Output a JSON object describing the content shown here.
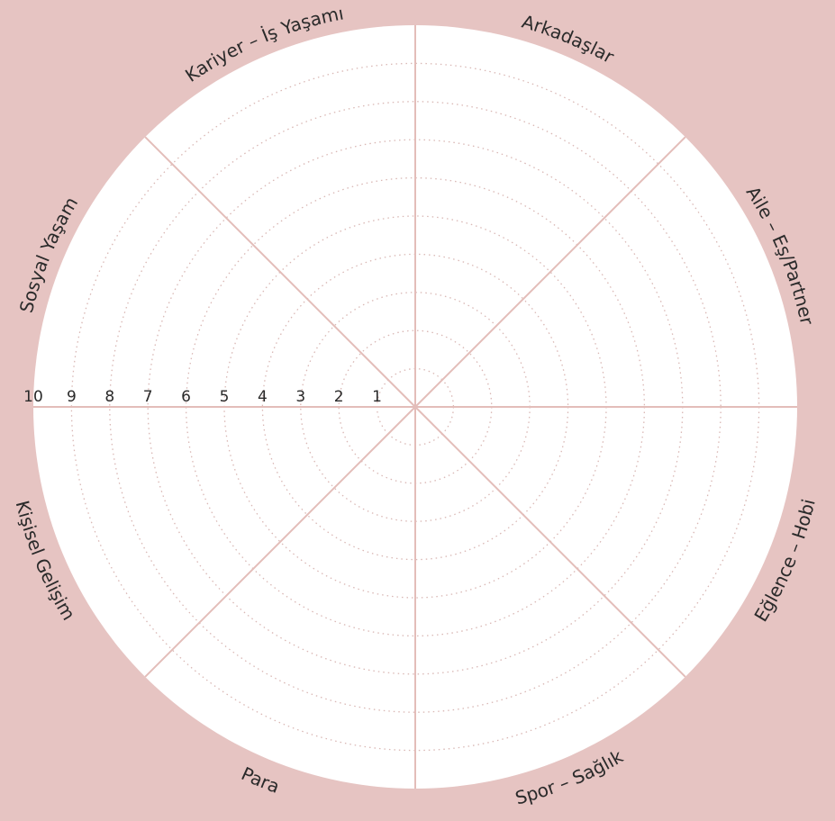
{
  "wheel": {
    "segments": [
      "Arkadaşlar",
      "Aile – Eş/Partner",
      "Eğlence – Hobi",
      "Spor – Sağlık",
      "Para",
      "Kişisel Gelişim",
      "Sosyal Yaşam",
      "Kariyer – İş Yaşamı"
    ],
    "scale": [
      1,
      2,
      3,
      4,
      5,
      6,
      7,
      8,
      9,
      10
    ]
  }
}
